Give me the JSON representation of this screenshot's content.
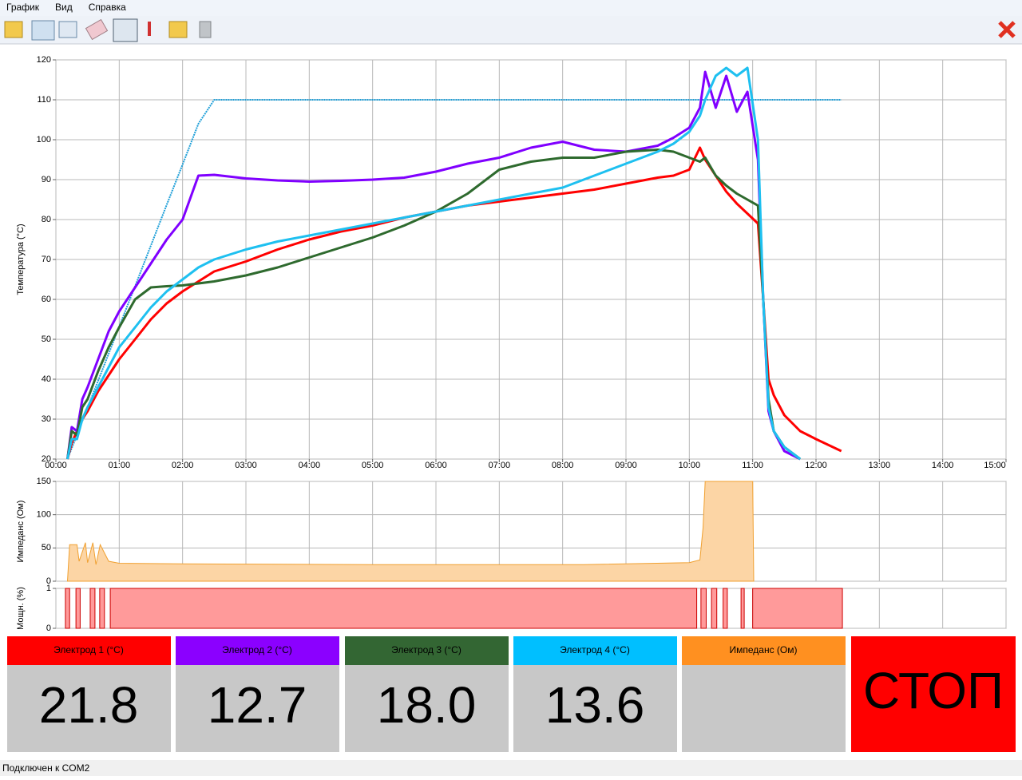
{
  "menu": [
    "График",
    "Вид",
    "Справка"
  ],
  "chart_data": [
    {
      "type": "line",
      "ylabel": "Температура (°C)",
      "x": [
        11,
        15,
        20,
        25,
        30,
        40,
        50,
        60,
        75,
        90,
        105,
        120,
        135,
        150,
        180,
        210,
        240,
        270,
        300,
        330,
        360,
        390,
        420,
        450,
        480,
        510,
        540,
        570,
        585,
        600,
        610,
        615,
        625,
        635,
        645,
        655,
        665,
        670,
        675,
        680,
        690,
        705,
        720,
        744
      ],
      "xlim": [
        0,
        900
      ],
      "xticks": [
        {
          "value": 0,
          "label": "00:00"
        },
        {
          "value": 60,
          "label": "01:00"
        },
        {
          "value": 120,
          "label": "02:00"
        },
        {
          "value": 180,
          "label": "03:00"
        },
        {
          "value": 240,
          "label": "04:00"
        },
        {
          "value": 300,
          "label": "05:00"
        },
        {
          "value": 360,
          "label": "06:00"
        },
        {
          "value": 420,
          "label": "07:00"
        },
        {
          "value": 480,
          "label": "08:00"
        },
        {
          "value": 540,
          "label": "09:00"
        },
        {
          "value": 600,
          "label": "10:00"
        },
        {
          "value": 660,
          "label": "11:00"
        },
        {
          "value": 720,
          "label": "12:00"
        },
        {
          "value": 780,
          "label": "13:00"
        },
        {
          "value": 840,
          "label": "14:00"
        },
        {
          "value": 900,
          "label": "15:00"
        }
      ],
      "ylim": [
        20,
        120
      ],
      "yticks": [
        20,
        30,
        40,
        50,
        60,
        70,
        80,
        90,
        100,
        110,
        120
      ],
      "grid": true,
      "series": [
        {
          "color": "#1e9fd8",
          "style": "dotted",
          "values": [
            20,
            22.7,
            26,
            29.5,
            32.9,
            39.6,
            46.4,
            53.2,
            63.3,
            73.5,
            83.7,
            93.8,
            104,
            110,
            110,
            110,
            110,
            110,
            110,
            110,
            110,
            110,
            110,
            110,
            110,
            110,
            110,
            110,
            110,
            110,
            110,
            110,
            110,
            110,
            110,
            110,
            110,
            110,
            110,
            110,
            110,
            110,
            110,
            110
          ]
        },
        {
          "color": "#ff0000",
          "values": [
            20,
            24,
            27,
            30,
            32,
            37,
            41,
            45,
            50,
            55,
            59,
            62,
            64.5,
            67,
            69.5,
            72.5,
            75,
            77,
            78.5,
            80.5,
            82,
            83.5,
            84.5,
            85.5,
            86.5,
            87.5,
            89,
            90.5,
            91,
            92.5,
            98,
            95,
            91,
            87,
            84,
            81.5,
            79,
            60,
            40,
            36,
            31,
            27,
            25,
            22
          ]
        },
        {
          "color": "#8000ff",
          "values": [
            20,
            28,
            27,
            35,
            38,
            45,
            52,
            57,
            63,
            69,
            75,
            80,
            91,
            91.2,
            90.3,
            89.8,
            89.5,
            89.7,
            90,
            90.5,
            92,
            94,
            95.5,
            98,
            99.5,
            97.5,
            97,
            98.5,
            100.5,
            103,
            108,
            117,
            108,
            116,
            107,
            112,
            95,
            60,
            32,
            27,
            22,
            20,
            null,
            null
          ]
        },
        {
          "color": "#2e6a2e",
          "values": [
            20,
            27,
            26,
            33,
            35,
            42,
            48,
            53,
            60,
            63,
            63.3,
            63.5,
            64,
            64.5,
            66,
            68,
            70.5,
            73,
            75.5,
            78.5,
            82,
            86.5,
            92.5,
            94.5,
            95.5,
            95.5,
            97,
            97.5,
            97,
            95.5,
            94.5,
            95.5,
            91,
            88.5,
            86.5,
            85,
            83.5,
            60,
            35,
            27,
            23,
            20,
            null,
            null
          ]
        },
        {
          "color": "#1ec0f0",
          "values": [
            20,
            25,
            25,
            30,
            33,
            38,
            43,
            48,
            53,
            58,
            62,
            65,
            68,
            70,
            72.5,
            74.5,
            76,
            77.5,
            79,
            80.5,
            82,
            83.5,
            85,
            86.5,
            88,
            91,
            94,
            97,
            99,
            102,
            106,
            110,
            116,
            118,
            116,
            118,
            100,
            60,
            33,
            27,
            23,
            20,
            null,
            null
          ]
        }
      ]
    },
    {
      "type": "area",
      "ylabel": "Импеданс (Ом)",
      "x": [
        11,
        13,
        20,
        22,
        28,
        30,
        35,
        38,
        42,
        50,
        60,
        120,
        300,
        500,
        600,
        610,
        613,
        615,
        618,
        660,
        661
      ],
      "values": [
        0,
        55,
        55,
        30,
        58,
        28,
        58,
        25,
        55,
        30,
        27,
        26,
        25,
        25,
        28,
        32,
        80,
        150,
        150,
        150,
        0
      ],
      "ylim": [
        0,
        150
      ],
      "yticks": [
        0,
        50,
        100,
        150
      ],
      "color": "#f0a030",
      "fill": "#fcd5a5",
      "grid": true
    },
    {
      "type": "histogram",
      "ylabel": "Мощн. (%)",
      "bins": [
        9,
        13,
        19,
        23,
        32.5,
        37,
        41.5,
        46,
        51.5,
        607,
        611,
        616,
        621,
        626,
        632,
        636,
        649,
        652,
        660,
        745
      ],
      "values": [
        1,
        0,
        1,
        0,
        1,
        0,
        1,
        0,
        1,
        0,
        1,
        0,
        1,
        0,
        1,
        0,
        1,
        0,
        1
      ],
      "ylim": [
        0,
        1
      ],
      "yticks": [
        0,
        1
      ],
      "color": "#cc0000",
      "fill": "#ff9a9a",
      "grid": true
    }
  ],
  "panels": [
    {
      "title": "Электрод 1 (°C)",
      "value": "21.8",
      "color": "#ff0000"
    },
    {
      "title": "Электрод 2 (°C)",
      "value": "12.7",
      "color": "#8b00ff"
    },
    {
      "title": "Электрод 3 (°C)",
      "value": "18.0",
      "color": "#336633"
    },
    {
      "title": "Электрод 4 (°C)",
      "value": "13.6",
      "color": "#00bfff"
    },
    {
      "title": "Импеданс (Ом)",
      "color": "#ff9020"
    }
  ],
  "stop_button": "СТОП",
  "status": "Подключен к COM2"
}
